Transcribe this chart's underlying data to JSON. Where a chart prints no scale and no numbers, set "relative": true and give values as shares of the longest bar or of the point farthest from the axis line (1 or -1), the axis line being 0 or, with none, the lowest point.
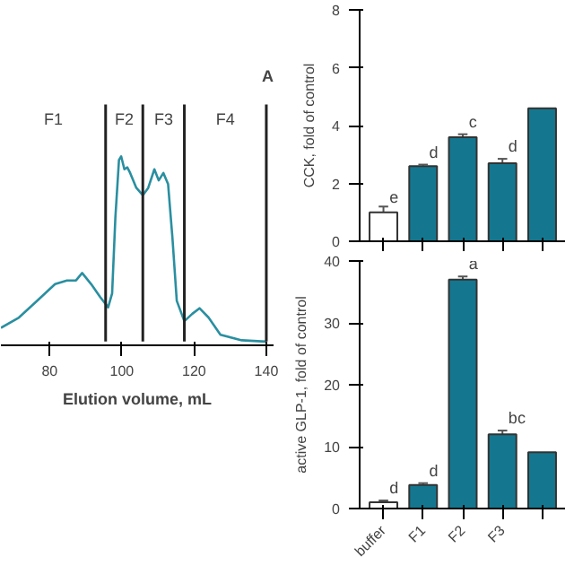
{
  "chart_data": [
    {
      "type": "line",
      "relative": true,
      "xlabel": "Elution volume, mL",
      "xlim": [
        66.5,
        142
      ],
      "xticks": [
        80,
        100,
        120,
        140
      ],
      "color": "#2a8fa0",
      "grid": false,
      "x": [
        66.5,
        71.5,
        76.5,
        81.5,
        84.8,
        87.3,
        89,
        91.5,
        94,
        96.2,
        97.3,
        98.2,
        99.2,
        99.8,
        100.7,
        101.5,
        102.3,
        104,
        105.8,
        107.3,
        109,
        110.2,
        111.5,
        112.8,
        114,
        115.2,
        117.3,
        119.5,
        121.5,
        124,
        127.3,
        133.2,
        139.8
      ],
      "values": [
        0.074,
        0.13,
        0.22,
        0.31,
        0.33,
        0.33,
        0.37,
        0.31,
        0.24,
        0.185,
        0.26,
        0.67,
        0.98,
        1.0,
        0.93,
        0.94,
        0.91,
        0.83,
        0.79,
        0.83,
        0.93,
        0.87,
        0.91,
        0.85,
        0.56,
        0.22,
        0.11,
        0.15,
        0.18,
        0.13,
        0.037,
        0.007,
        0
      ],
      "ref_lines": [
        {
          "axis": "x",
          "value": 95.5,
          "color": "#222222"
        },
        {
          "axis": "x",
          "value": 105.8,
          "color": "#222222"
        },
        {
          "axis": "x",
          "value": 117.3,
          "color": "#222222"
        },
        {
          "axis": "x",
          "value": 140,
          "color": "#222222"
        }
      ],
      "annotations": [
        "F1",
        "F2",
        "F3",
        "F4",
        "A"
      ]
    },
    {
      "type": "bar",
      "ylabel": "CCK, fold of control",
      "categories": [
        null,
        null,
        null,
        null,
        null
      ],
      "ylim": [
        0,
        8
      ],
      "yticks": [
        0,
        2,
        4,
        6,
        8
      ],
      "grid": false,
      "values": [
        1.0,
        2.6,
        3.6,
        2.7,
        4.6
      ],
      "colors": [
        "#ffffff",
        "#14778f",
        "#14778f",
        "#14778f",
        "#14778f"
      ],
      "errors": [
        0.2,
        0.05,
        0.1,
        0.15,
        null
      ],
      "value_labels": [
        "e",
        "d",
        "c",
        "d",
        null
      ]
    },
    {
      "type": "bar",
      "ylabel": "active GLP-1, fold of control",
      "categories": [
        "buffer",
        "F1",
        "F2",
        "F3",
        null
      ],
      "ylim": [
        0,
        40
      ],
      "yticks": [
        0,
        10,
        20,
        30,
        40
      ],
      "grid": false,
      "values": [
        1.0,
        3.8,
        37,
        12.0,
        9.1
      ],
      "colors": [
        "#ffffff",
        "#14778f",
        "#14778f",
        "#14778f",
        "#14778f"
      ],
      "errors": [
        0.3,
        0.3,
        0.5,
        0.6,
        null
      ],
      "value_labels": [
        "d",
        "d",
        "a",
        "bc",
        null
      ]
    }
  ]
}
